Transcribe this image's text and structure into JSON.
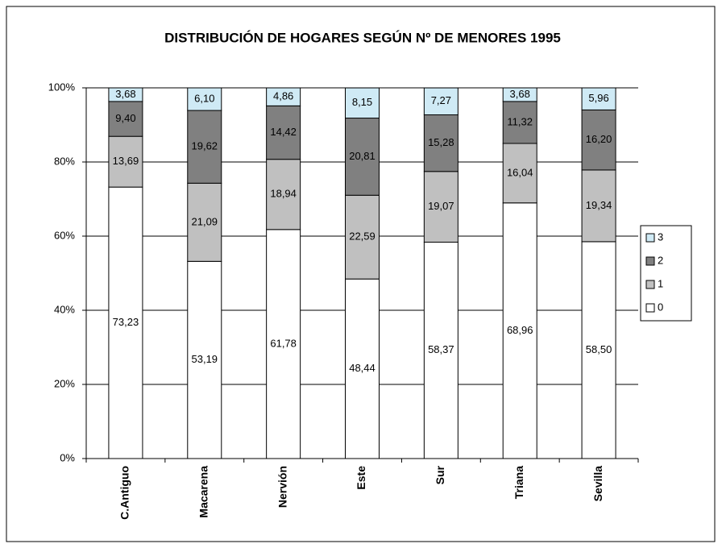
{
  "chart_data": {
    "type": "stacked_bar",
    "title": "DISTRIBUCIÓN DE HOGARES SEGÚN Nº DE MENORES 1995",
    "categories": [
      "C.Antiguo",
      "Macarena",
      "Nervión",
      "Este",
      "Sur",
      "Triana",
      "Sevilla"
    ],
    "series": [
      {
        "name": "0",
        "color": "#ffffff",
        "values": [
          73.23,
          53.19,
          61.78,
          48.44,
          58.37,
          68.96,
          58.5
        ],
        "value_labels": [
          "73,23",
          "53,19",
          "61,78",
          "48,44",
          "58,37",
          "68,96",
          "58,50"
        ]
      },
      {
        "name": "1",
        "color": "#c0c0c0",
        "values": [
          13.69,
          21.09,
          18.94,
          22.59,
          19.07,
          16.04,
          19.34
        ],
        "value_labels": [
          "13,69",
          "21,09",
          "18,94",
          "22,59",
          "19,07",
          "16,04",
          "19,34"
        ]
      },
      {
        "name": "2",
        "color": "#808080",
        "values": [
          9.4,
          19.62,
          14.42,
          20.81,
          15.28,
          11.32,
          16.2
        ],
        "value_labels": [
          "9,40",
          "19,62",
          "14,42",
          "20,81",
          "15,28",
          "11,32",
          "16,20"
        ]
      },
      {
        "name": "3",
        "color": "#cfeaf5",
        "values": [
          3.68,
          6.1,
          4.86,
          8.15,
          7.27,
          3.68,
          5.96
        ],
        "value_labels": [
          "3,68",
          "6,10",
          "4,86",
          "8,15",
          "7,27",
          "3,68",
          "5,96"
        ]
      }
    ],
    "ylim": [
      0,
      100
    ],
    "yticks": [
      {
        "value": 0,
        "label": "0%"
      },
      {
        "value": 20,
        "label": "20%"
      },
      {
        "value": 40,
        "label": "40%"
      },
      {
        "value": 60,
        "label": "60%"
      },
      {
        "value": 80,
        "label": "80%"
      },
      {
        "value": 100,
        "label": "100%"
      }
    ],
    "grid": true
  }
}
